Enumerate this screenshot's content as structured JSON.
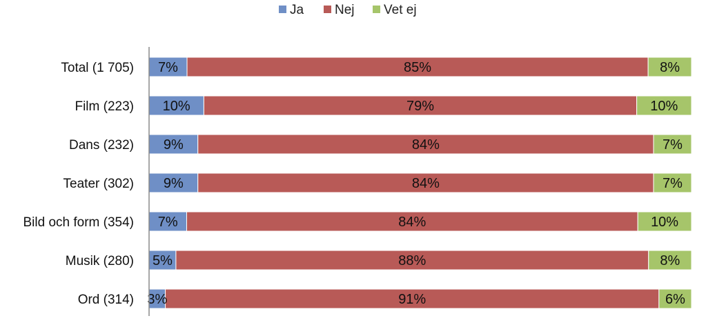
{
  "chart_data": {
    "type": "bar",
    "orientation": "horizontal",
    "stacked": "percent",
    "title": "",
    "xlabel": "",
    "ylabel": "",
    "legend": "top",
    "grid": false,
    "xlim": [
      0,
      100
    ],
    "categories": [
      "Total (1 705)",
      "Film (223)",
      "Dans (232)",
      "Teater (302)",
      "Bild och form (354)",
      "Musik (280)",
      "Ord (314)"
    ],
    "series": [
      {
        "name": "Ja",
        "color": "#6f8fc6",
        "values": [
          7,
          10,
          9,
          9,
          7,
          5,
          3
        ],
        "labels": [
          "7%",
          "10%",
          "9%",
          "9%",
          "7%",
          "5%",
          "3%"
        ]
      },
      {
        "name": "Nej",
        "color": "#b85a57",
        "values": [
          85,
          79,
          84,
          84,
          84,
          88,
          91
        ],
        "labels": [
          "85%",
          "79%",
          "84%",
          "84%",
          "84%",
          "88%",
          "91%"
        ]
      },
      {
        "name": "Vet ej",
        "color": "#a6c56a",
        "values": [
          8,
          10,
          7,
          7,
          10,
          8,
          6
        ],
        "labels": [
          "8%",
          "10%",
          "7%",
          "7%",
          "10%",
          "8%",
          "6%"
        ]
      }
    ]
  }
}
